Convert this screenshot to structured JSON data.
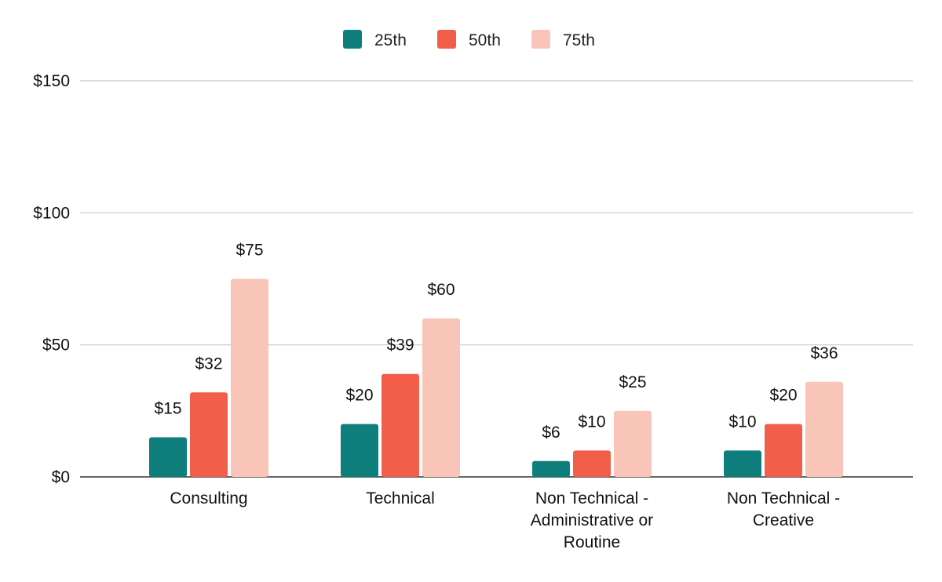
{
  "chart_data": {
    "type": "bar",
    "title": "",
    "xlabel": "",
    "ylabel": "",
    "categories": [
      [
        "Consulting"
      ],
      [
        "Technical"
      ],
      [
        "Non Technical -",
        "Administrative or",
        "Routine"
      ],
      [
        "Non Technical -",
        "Creative"
      ]
    ],
    "series": [
      {
        "name": "25th",
        "color": "#0e7f7d",
        "values": [
          15,
          20,
          6,
          10
        ],
        "labels": [
          "$15",
          "$20",
          "$6",
          "$10"
        ]
      },
      {
        "name": "50th",
        "color": "#f25e4a",
        "values": [
          32,
          39,
          10,
          20
        ],
        "labels": [
          "$32",
          "$39",
          "$10",
          "$20"
        ]
      },
      {
        "name": "75th",
        "color": "#f8c5b8",
        "values": [
          75,
          60,
          25,
          36
        ],
        "labels": [
          "$75",
          "$60",
          "$25",
          "$36"
        ]
      }
    ],
    "ylim": [
      0,
      150
    ],
    "y_ticks": [
      0,
      50,
      100,
      150
    ],
    "y_tick_labels": [
      "$0",
      "$50",
      "$100",
      "$150"
    ],
    "grid": true,
    "legend_position": "top-center"
  }
}
